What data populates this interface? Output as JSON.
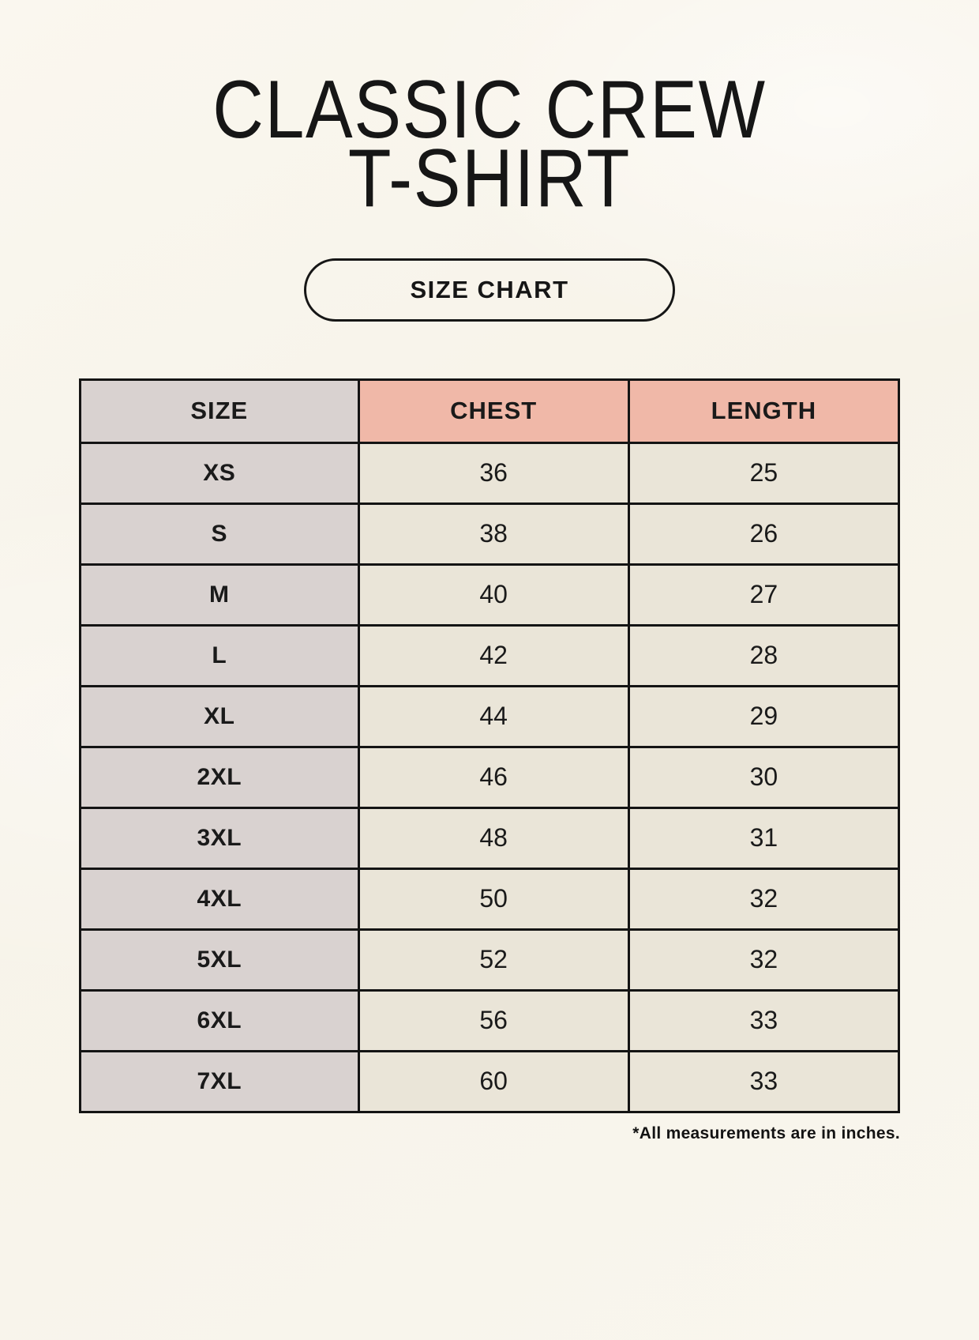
{
  "page": {
    "title_line1": "CLASSIC CREW",
    "title_line2": "T-SHIRT",
    "badge_label": "SIZE CHART",
    "footnote": "*All measurements are in inches."
  },
  "chart_data": {
    "type": "table",
    "title": "Classic Crew T-Shirt Size Chart",
    "units": "inches",
    "columns": [
      "SIZE",
      "CHEST",
      "LENGTH"
    ],
    "rows": [
      [
        "XS",
        "36",
        "25"
      ],
      [
        "S",
        "38",
        "26"
      ],
      [
        "M",
        "40",
        "27"
      ],
      [
        "L",
        "42",
        "28"
      ],
      [
        "XL",
        "44",
        "29"
      ],
      [
        "2XL",
        "46",
        "30"
      ],
      [
        "3XL",
        "48",
        "31"
      ],
      [
        "4XL",
        "50",
        "32"
      ],
      [
        "5XL",
        "52",
        "32"
      ],
      [
        "6XL",
        "56",
        "33"
      ],
      [
        "7XL",
        "60",
        "33"
      ]
    ]
  },
  "colors": {
    "page_background": "#f8f5ec",
    "header_accent_pink": "#f0b8a8",
    "size_column_gray": "#d9d2d0",
    "cell_cream": "#eae5d8",
    "table_border": "#141414",
    "text": "#1a1a1a"
  }
}
